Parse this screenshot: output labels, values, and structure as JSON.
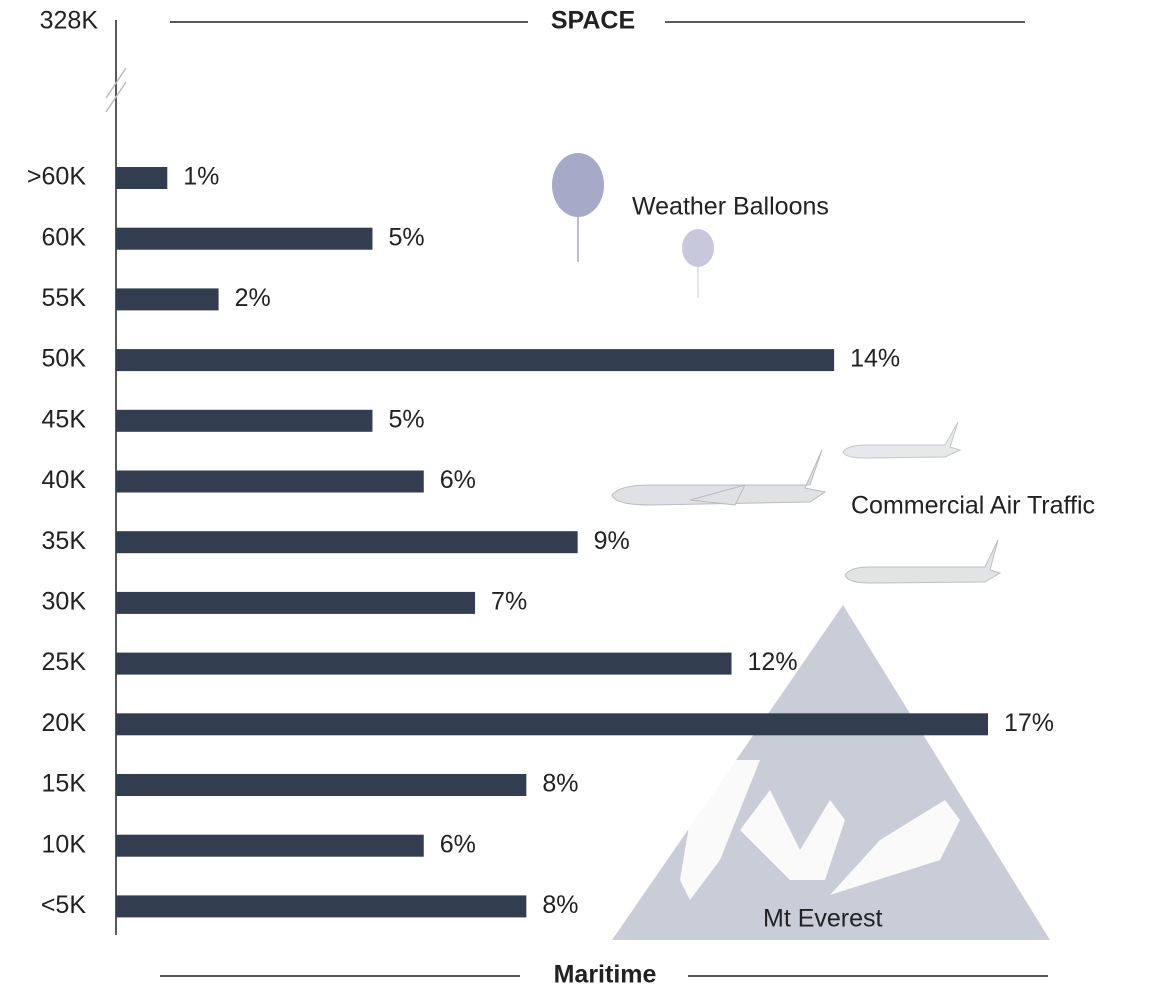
{
  "chart_data": {
    "type": "bar",
    "orientation": "horizontal",
    "top_label": "328K",
    "top_region": "SPACE",
    "bottom_region": "Maritime",
    "annotations": [
      "Weather Balloons",
      "Commercial Air Traffic",
      "Mt Everest"
    ],
    "categories": [
      ">60K",
      "60K",
      "55K",
      "50K",
      "45K",
      "40K",
      "35K",
      "30K",
      "25K",
      "20K",
      "15K",
      "10K",
      "<5K"
    ],
    "values": [
      1,
      5,
      2,
      14,
      5,
      6,
      9,
      7,
      12,
      17,
      8,
      6,
      8
    ],
    "value_labels": [
      "1%",
      "5%",
      "2%",
      "14%",
      "5%",
      "6%",
      "9%",
      "7%",
      "12%",
      "17%",
      "8%",
      "6%",
      "8%"
    ],
    "color": "#333d50"
  }
}
